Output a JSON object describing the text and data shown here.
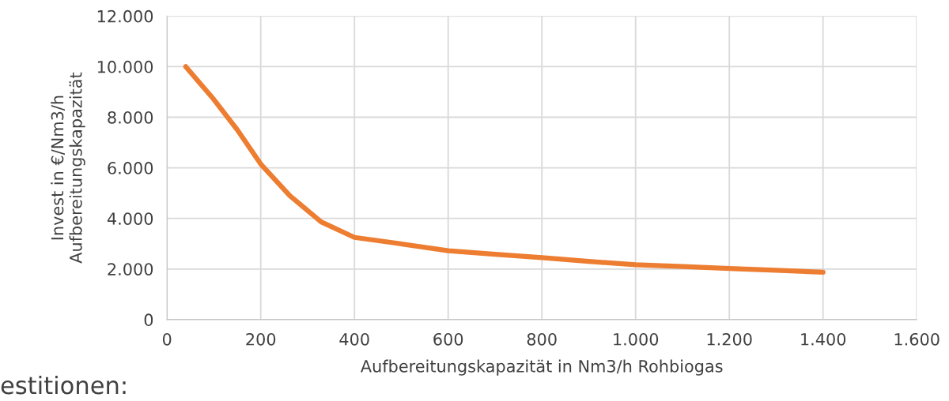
{
  "chart_data": {
    "type": "line",
    "xlabel": "Aufbereitungskapazität in Nm3/h Rohbiogas",
    "ylabel": "Invest in €/Nm3/h\nAufbereitungskapazität",
    "series": [
      {
        "color": "#ed7d31",
        "x": [
          40,
          100,
          150,
          200,
          262,
          329,
          400,
          486,
          600,
          700,
          800,
          900,
          1000,
          1100,
          1200,
          1300,
          1400
        ],
        "values": [
          10000,
          8700,
          7500,
          6150,
          4900,
          3860,
          3250,
          3030,
          2720,
          2580,
          2450,
          2300,
          2170,
          2100,
          2020,
          1950,
          1870
        ]
      }
    ],
    "xlim": [
      0,
      1600
    ],
    "xticks": [
      0,
      200,
      400,
      600,
      800,
      {
        "value": 1000,
        "label": "1.000"
      },
      {
        "value": 1200,
        "label": "1.200"
      },
      {
        "value": 1400,
        "label": "1.400"
      },
      {
        "value": 1600,
        "label": "1.600"
      }
    ],
    "ylim": [
      0,
      12000
    ],
    "yticks": [
      0,
      {
        "value": 2000,
        "label": "2.000"
      },
      {
        "value": 4000,
        "label": "4.000"
      },
      {
        "value": 6000,
        "label": "6.000"
      },
      {
        "value": 8000,
        "label": "8.000"
      },
      {
        "value": 10000,
        "label": "10.000"
      },
      {
        "value": 12000,
        "label": "12.000"
      }
    ],
    "grid": true,
    "legend": false,
    "marker": "none",
    "line_style": "solid",
    "annotations": [
      "estitionen:"
    ]
  }
}
